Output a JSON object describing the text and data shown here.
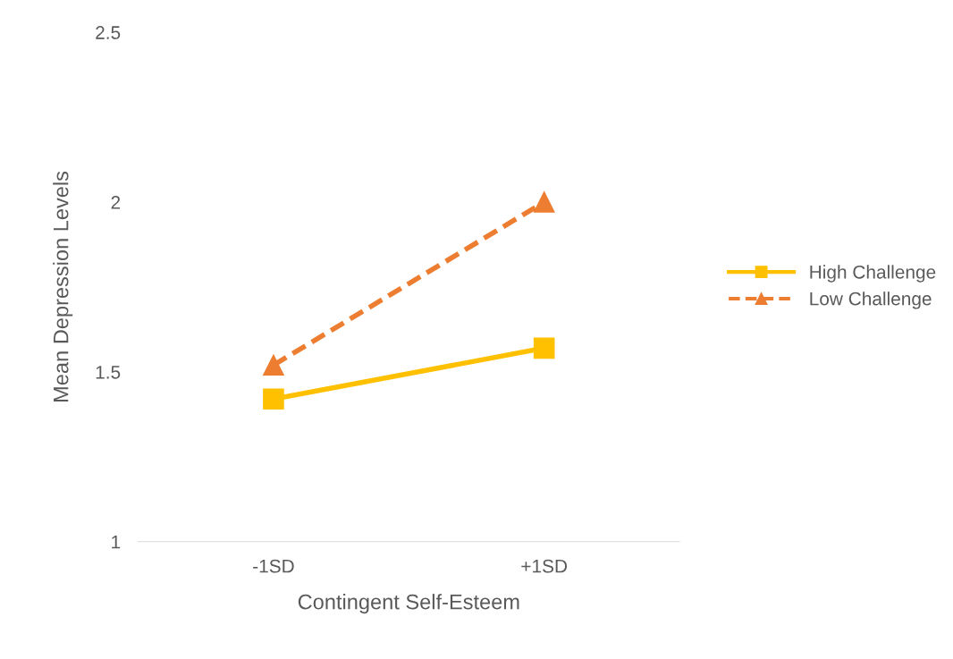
{
  "chart_data": {
    "type": "line",
    "xlabel": "Contingent Self-Esteem",
    "ylabel": "Mean Depression Levels",
    "categories": [
      "-1SD",
      "+1SD"
    ],
    "series": [
      {
        "name": "High Challenge",
        "color": "#ffc000",
        "values": [
          1.42,
          1.57
        ],
        "marker": "square",
        "line_style": "solid"
      },
      {
        "name": "Low Challenge",
        "color": "#ed7d31",
        "values": [
          1.52,
          2.0
        ],
        "marker": "triangle",
        "line_style": "dashed"
      }
    ],
    "ylim": [
      1,
      2.5
    ],
    "yticks": [
      1,
      1.5,
      2,
      2.5
    ],
    "grid": false,
    "legend": "right"
  }
}
